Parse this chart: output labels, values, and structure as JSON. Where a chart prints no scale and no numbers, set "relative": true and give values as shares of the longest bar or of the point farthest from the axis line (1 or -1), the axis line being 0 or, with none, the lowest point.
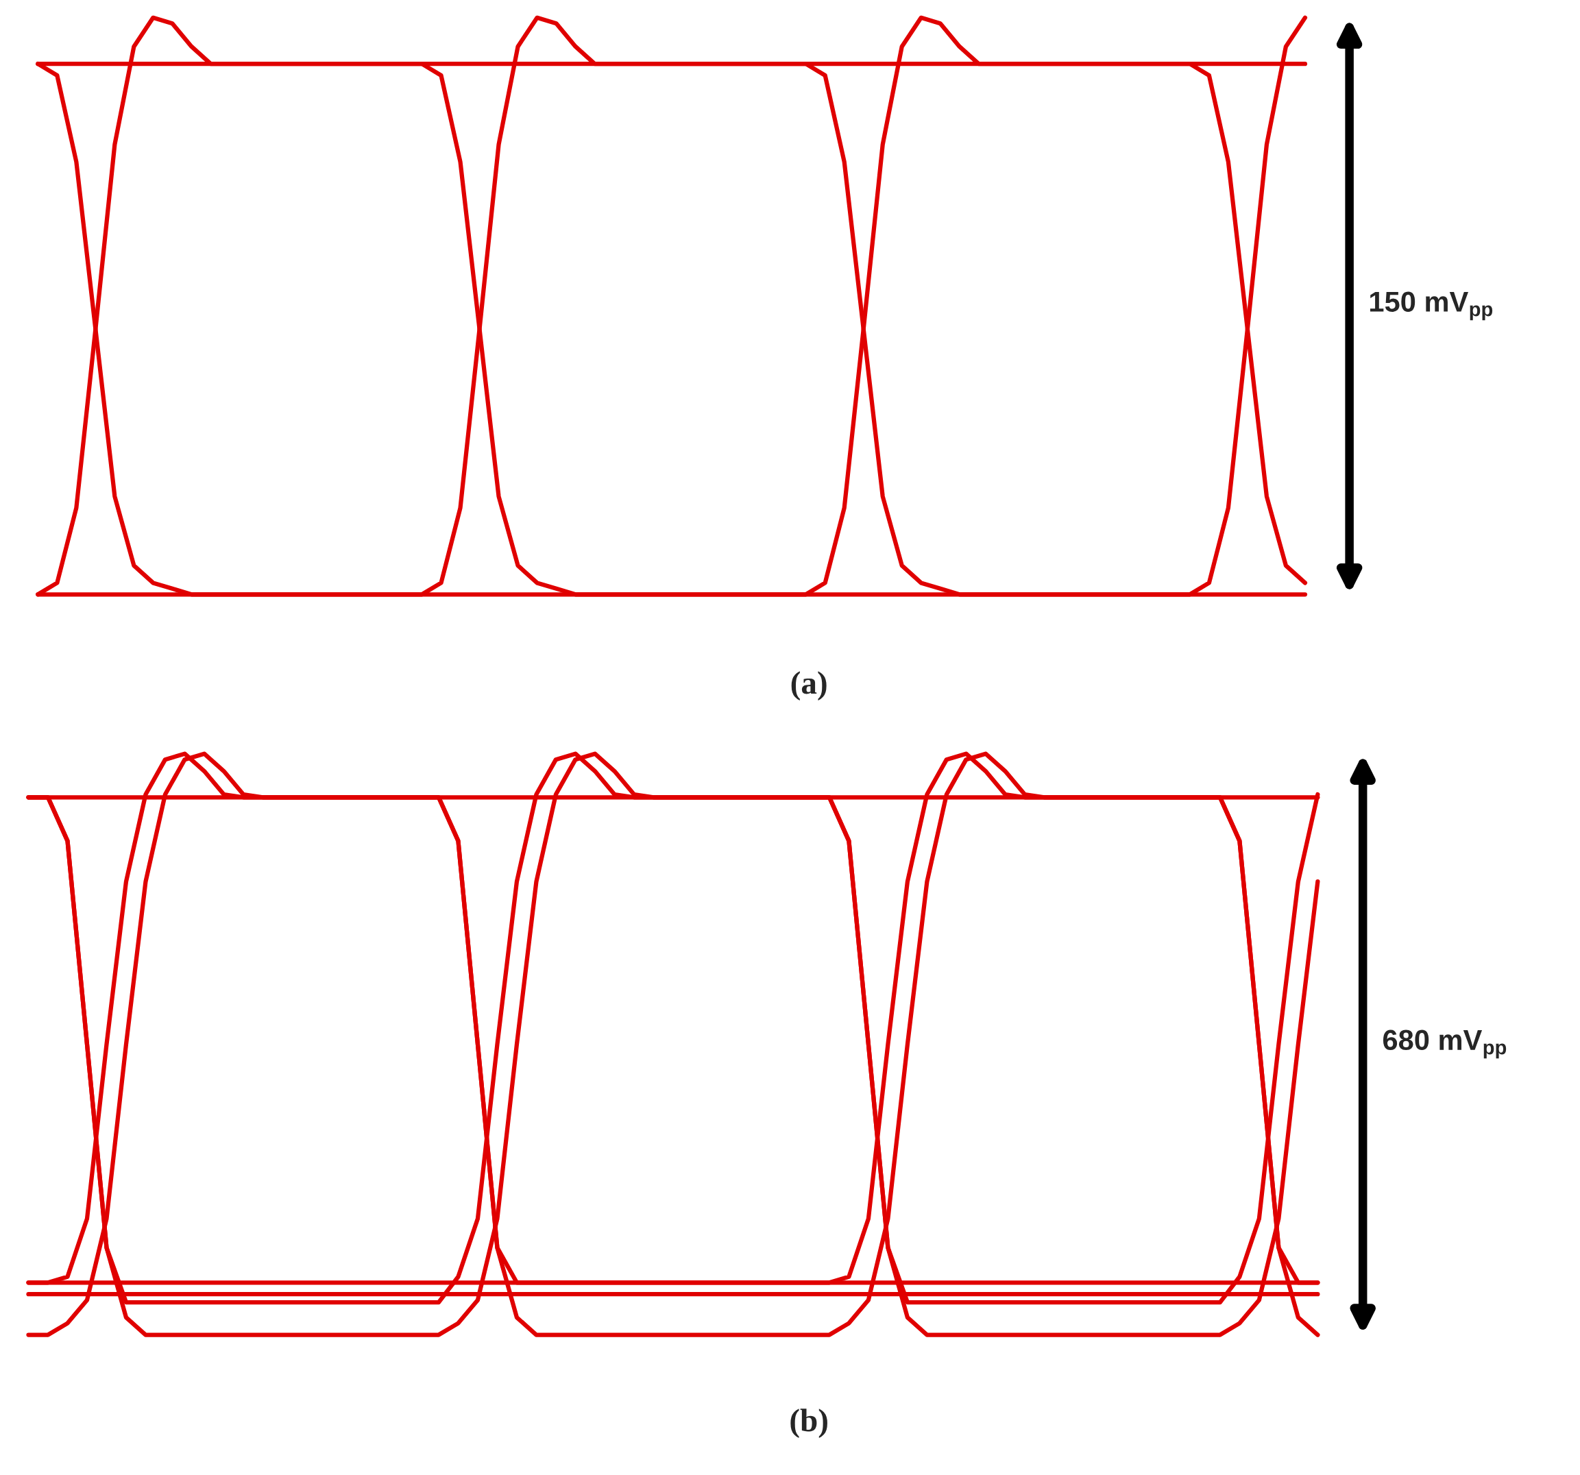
{
  "chart_data": [
    {
      "type": "line",
      "relative": true,
      "categories": [
        null,
        null,
        null,
        null,
        null,
        null,
        null,
        null,
        null,
        null,
        null,
        null,
        null,
        null,
        null,
        null,
        null,
        null,
        null,
        null,
        null,
        null,
        null,
        null,
        null,
        null,
        null,
        null,
        null,
        null,
        null,
        null,
        null,
        null,
        null,
        null,
        null,
        null,
        null,
        null,
        null,
        null,
        null,
        null,
        null,
        null,
        null,
        null,
        null,
        null,
        null,
        null,
        null,
        null,
        null,
        null,
        null,
        null,
        null,
        null,
        null,
        null,
        null,
        null,
        null,
        null,
        null
      ],
      "series": [
        {
          "color": "#e00000",
          "values": [
            0,
            0.02,
            0.15,
            0.46,
            0.78,
            0.95,
            1.0,
            0.99,
            0.95,
            0.92,
            0.92,
            0.92,
            0.92,
            0.92,
            0.92,
            0.92,
            0.92,
            0.92,
            0.92,
            0.92,
            0.92,
            0.9,
            0.75,
            0.46,
            0.17,
            0.05,
            0.02,
            0.01,
            0,
            0,
            0,
            0,
            0,
            0,
            0,
            0,
            0,
            0,
            0,
            0,
            0,
            0.02,
            0.15,
            0.46,
            0.78,
            0.95,
            1.0,
            0.99,
            0.95,
            0.92,
            0.92,
            0.92,
            0.92,
            0.92,
            0.92,
            0.92,
            0.92,
            0.92,
            0.92,
            0.92,
            0.92,
            0.9,
            0.75,
            0.46,
            0.17,
            0.05,
            0.02
          ]
        },
        {
          "color": "#e00000",
          "values": [
            0.92,
            0.9,
            0.75,
            0.46,
            0.17,
            0.05,
            0.02,
            0.01,
            0,
            0,
            0,
            0,
            0,
            0,
            0,
            0,
            0,
            0,
            0,
            0,
            0,
            0.02,
            0.15,
            0.46,
            0.78,
            0.95,
            1.0,
            0.99,
            0.95,
            0.92,
            0.92,
            0.92,
            0.92,
            0.92,
            0.92,
            0.92,
            0.92,
            0.92,
            0.92,
            0.92,
            0.92,
            0.9,
            0.75,
            0.46,
            0.17,
            0.05,
            0.02,
            0.01,
            0,
            0,
            0,
            0,
            0,
            0,
            0,
            0,
            0,
            0,
            0,
            0,
            0,
            0.02,
            0.15,
            0.46,
            0.78,
            0.95,
            1.0
          ]
        },
        {
          "color": "#e00000",
          "values": [
            0.92,
            0.92,
            0.92,
            0.92,
            0.92,
            0.92,
            0.92,
            0.92,
            0.92,
            0.92,
            0.92,
            0.92,
            0.92,
            0.92,
            0.92,
            0.92,
            0.92,
            0.92,
            0.92,
            0.92,
            0.92,
            0.92,
            0.92,
            0.92,
            0.92,
            0.92,
            0.92,
            0.92,
            0.92,
            0.92,
            0.92,
            0.92,
            0.92,
            0.92,
            0.92,
            0.92,
            0.92,
            0.92,
            0.92,
            0.92,
            0.92,
            0.92,
            0.92,
            0.92,
            0.92,
            0.92,
            0.92,
            0.92,
            0.92,
            0.92,
            0.92,
            0.92,
            0.92,
            0.92,
            0.92,
            0.92,
            0.92,
            0.92,
            0.92,
            0.92,
            0.92,
            0.92,
            0.92,
            0.92,
            0.92,
            0.92,
            0.92
          ]
        },
        {
          "color": "#e00000",
          "values": [
            0,
            0,
            0,
            0,
            0,
            0,
            0,
            0,
            0,
            0,
            0,
            0,
            0,
            0,
            0,
            0,
            0,
            0,
            0,
            0,
            0,
            0,
            0,
            0,
            0,
            0,
            0,
            0,
            0,
            0,
            0,
            0,
            0,
            0,
            0,
            0,
            0,
            0,
            0,
            0,
            0,
            0,
            0,
            0,
            0,
            0,
            0,
            0,
            0,
            0,
            0,
            0,
            0,
            0,
            0,
            0,
            0,
            0,
            0,
            0,
            0,
            0,
            0,
            0,
            0,
            0,
            0
          ]
        }
      ],
      "annotations": [
        "150 mV$_{pp}$",
        "(a)"
      ]
    },
    {
      "type": "line",
      "relative": true,
      "categories": [
        null,
        null,
        null,
        null,
        null,
        null,
        null,
        null,
        null,
        null,
        null,
        null,
        null,
        null,
        null,
        null,
        null,
        null,
        null,
        null,
        null,
        null,
        null,
        null,
        null,
        null,
        null,
        null,
        null,
        null,
        null,
        null,
        null,
        null,
        null,
        null,
        null,
        null,
        null,
        null,
        null,
        null,
        null,
        null,
        null,
        null,
        null,
        null,
        null,
        null,
        null,
        null,
        null,
        null,
        null,
        null,
        null,
        null,
        null,
        null,
        null,
        null,
        null,
        null,
        null,
        null,
        null
      ],
      "series": [
        {
          "color": "#e00000",
          "values": [
            0,
            0,
            0.02,
            0.06,
            0.2,
            0.5,
            0.78,
            0.93,
            0.99,
            1.0,
            0.97,
            0.93,
            0.925,
            0.925,
            0.925,
            0.925,
            0.925,
            0.925,
            0.925,
            0.925,
            0.925,
            0.925,
            0.85,
            0.5,
            0.15,
            0.03,
            0,
            0,
            0,
            0,
            0,
            0,
            0,
            0,
            0,
            0,
            0,
            0,
            0,
            0,
            0,
            0,
            0.02,
            0.06,
            0.2,
            0.5,
            0.78,
            0.93,
            0.99,
            1.0,
            0.97,
            0.93,
            0.925,
            0.925,
            0.925,
            0.925,
            0.925,
            0.925,
            0.925,
            0.925,
            0.925,
            0.925,
            0.85,
            0.5,
            0.15,
            0.03,
            0
          ]
        },
        {
          "color": "#e00000",
          "values": [
            0.925,
            0.925,
            0.85,
            0.5,
            0.15,
            0.03,
            0,
            0,
            0,
            0,
            0,
            0,
            0,
            0,
            0,
            0,
            0,
            0,
            0,
            0,
            0,
            0,
            0.02,
            0.06,
            0.2,
            0.5,
            0.78,
            0.93,
            0.99,
            1.0,
            0.97,
            0.93,
            0.925,
            0.925,
            0.925,
            0.925,
            0.925,
            0.925,
            0.925,
            0.925,
            0.925,
            0.925,
            0.85,
            0.5,
            0.15,
            0.03,
            0,
            0,
            0,
            0,
            0,
            0,
            0,
            0,
            0,
            0,
            0,
            0,
            0,
            0,
            0,
            0,
            0.02,
            0.06,
            0.2,
            0.5,
            0.78
          ]
        },
        {
          "color": "#e00000",
          "values": [
            0.09,
            0.09,
            0.1,
            0.2,
            0.5,
            0.78,
            0.93,
            0.99,
            1.0,
            0.97,
            0.93,
            0.925,
            0.925,
            0.925,
            0.925,
            0.925,
            0.925,
            0.925,
            0.925,
            0.925,
            0.925,
            0.925,
            0.85,
            0.5,
            0.15,
            0.09,
            0.09,
            0.09,
            0.09,
            0.09,
            0.09,
            0.09,
            0.09,
            0.09,
            0.09,
            0.09,
            0.09,
            0.09,
            0.09,
            0.09,
            0.09,
            0.09,
            0.1,
            0.2,
            0.5,
            0.78,
            0.93,
            0.99,
            1.0,
            0.97,
            0.93,
            0.925,
            0.925,
            0.925,
            0.925,
            0.925,
            0.925,
            0.925,
            0.925,
            0.925,
            0.925,
            0.925,
            0.85,
            0.5,
            0.15,
            0.09,
            0.09
          ]
        },
        {
          "color": "#e00000",
          "values": [
            0.925,
            0.925,
            0.85,
            0.5,
            0.15,
            0.056,
            0.056,
            0.056,
            0.056,
            0.056,
            0.056,
            0.056,
            0.056,
            0.056,
            0.056,
            0.056,
            0.056,
            0.056,
            0.056,
            0.056,
            0.056,
            0.056,
            0.1,
            0.2,
            0.5,
            0.78,
            0.93,
            0.99,
            1.0,
            0.97,
            0.93,
            0.925,
            0.925,
            0.925,
            0.925,
            0.925,
            0.925,
            0.925,
            0.925,
            0.925,
            0.925,
            0.925,
            0.85,
            0.5,
            0.15,
            0.056,
            0.056,
            0.056,
            0.056,
            0.056,
            0.056,
            0.056,
            0.056,
            0.056,
            0.056,
            0.056,
            0.056,
            0.056,
            0.056,
            0.056,
            0.056,
            0.056,
            0.1,
            0.2,
            0.5,
            0.78,
            0.93
          ]
        },
        {
          "color": "#e00000",
          "values": [
            0.925,
            0.925,
            0.925,
            0.925,
            0.925,
            0.925,
            0.925,
            0.925,
            0.925,
            0.925,
            0.925,
            0.925,
            0.925,
            0.925,
            0.925,
            0.925,
            0.925,
            0.925,
            0.925,
            0.925,
            0.925,
            0.925,
            0.925,
            0.925,
            0.925,
            0.925,
            0.925,
            0.925,
            0.925,
            0.925,
            0.925,
            0.925,
            0.925,
            0.925,
            0.925,
            0.925,
            0.925,
            0.925,
            0.925,
            0.925,
            0.925,
            0.925,
            0.925,
            0.925,
            0.925,
            0.925,
            0.925,
            0.925,
            0.925,
            0.925,
            0.925,
            0.925,
            0.925,
            0.925,
            0.925,
            0.925,
            0.925,
            0.925,
            0.925,
            0.925,
            0.925,
            0.925,
            0.925,
            0.925,
            0.925,
            0.925,
            0.925
          ]
        },
        {
          "color": "#e00000",
          "values": [
            0.09,
            0.09,
            0.09,
            0.09,
            0.09,
            0.09,
            0.09,
            0.09,
            0.09,
            0.09,
            0.09,
            0.09,
            0.09,
            0.09,
            0.09,
            0.09,
            0.09,
            0.09,
            0.09,
            0.09,
            0.09,
            0.09,
            0.09,
            0.09,
            0.09,
            0.09,
            0.09,
            0.09,
            0.09,
            0.09,
            0.09,
            0.09,
            0.09,
            0.09,
            0.09,
            0.09,
            0.09,
            0.09,
            0.09,
            0.09,
            0.09,
            0.09,
            0.09,
            0.09,
            0.09,
            0.09,
            0.09,
            0.09,
            0.09,
            0.09,
            0.09,
            0.09,
            0.09,
            0.09,
            0.09,
            0.09,
            0.09,
            0.09,
            0.09,
            0.09,
            0.09,
            0.09,
            0.09,
            0.09,
            0.09,
            0.09,
            0.09
          ]
        },
        {
          "color": "#e00000",
          "values": [
            0.07,
            0.07,
            0.07,
            0.07,
            0.07,
            0.07,
            0.07,
            0.07,
            0.07,
            0.07,
            0.07,
            0.07,
            0.07,
            0.07,
            0.07,
            0.07,
            0.07,
            0.07,
            0.07,
            0.07,
            0.07,
            0.07,
            0.07,
            0.07,
            0.07,
            0.07,
            0.07,
            0.07,
            0.07,
            0.07,
            0.07,
            0.07,
            0.07,
            0.07,
            0.07,
            0.07,
            0.07,
            0.07,
            0.07,
            0.07,
            0.07,
            0.07,
            0.07,
            0.07,
            0.07,
            0.07,
            0.07,
            0.07,
            0.07,
            0.07,
            0.07,
            0.07,
            0.07,
            0.07,
            0.07,
            0.07,
            0.07,
            0.07,
            0.07,
            0.07,
            0.07,
            0.07,
            0.07,
            0.07,
            0.07,
            0.07,
            0.07
          ]
        }
      ],
      "annotations": [
        "680 mV$_{pp}$",
        "(b)"
      ]
    }
  ]
}
